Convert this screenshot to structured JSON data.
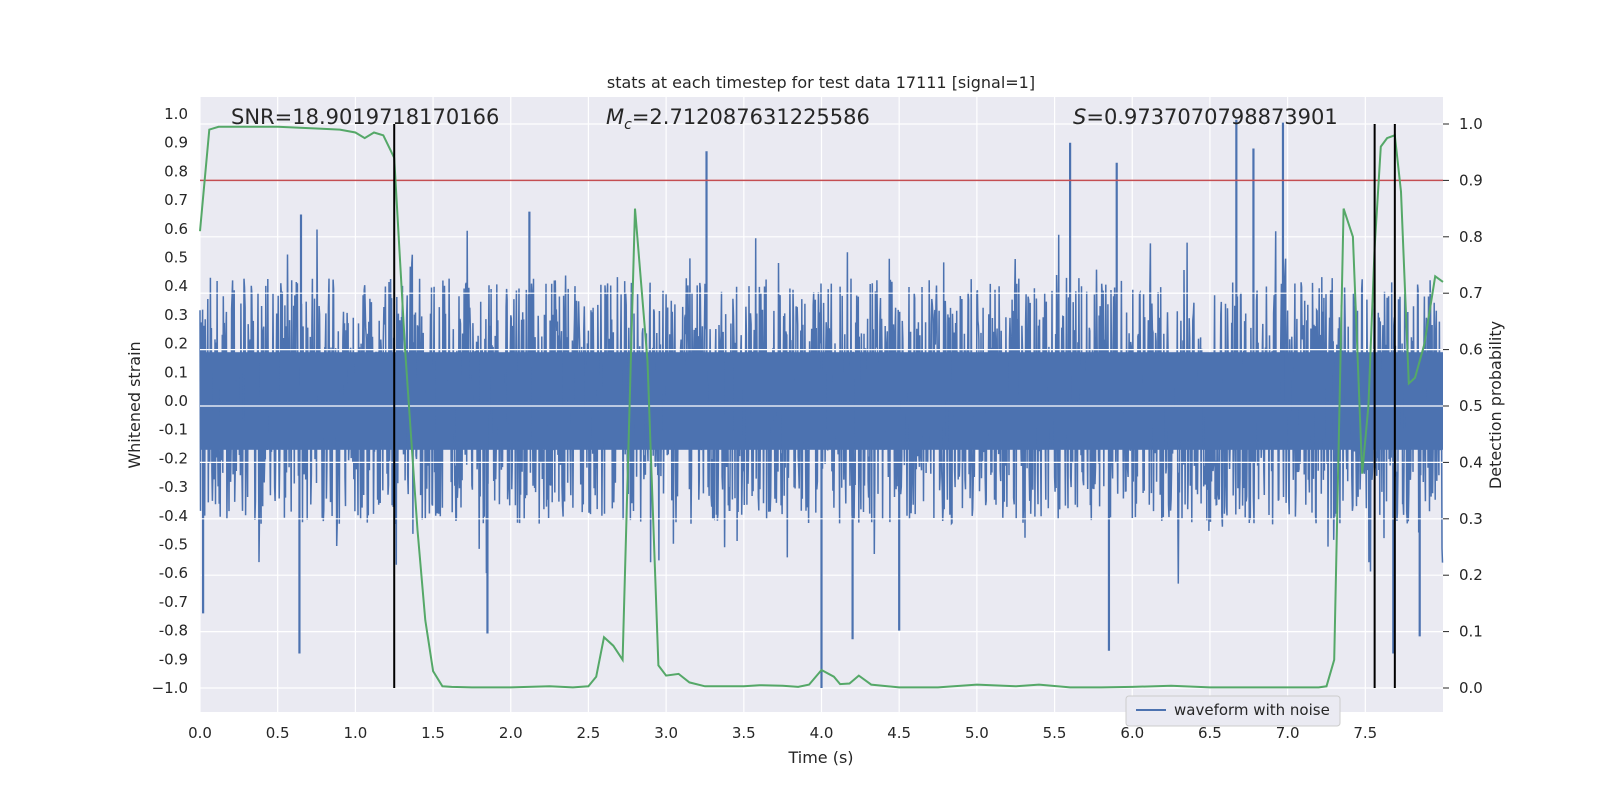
{
  "chart_data": {
    "type": "line",
    "title": "stats at each timestep for test data 17111 [signal=1]",
    "xlabel": "Time (s)",
    "ylabel_left": "Whitened strain",
    "ylabel_right": "Detection probability",
    "xlim": [
      0,
      8
    ],
    "ylim_left": [
      -1.1,
      1.06
    ],
    "ylim_right": [
      -0.05,
      1.02
    ],
    "x_ticks": [
      0,
      0.5,
      1,
      1.5,
      2,
      2.5,
      3,
      3.5,
      4,
      4.5,
      5,
      5.5,
      6,
      6.5,
      7,
      7.5
    ],
    "x_tick_labels": [
      "0.0",
      "0.5",
      "1.0",
      "1.5",
      "2.0",
      "2.5",
      "3.0",
      "3.5",
      "4.0",
      "4.5",
      "5.0",
      "5.5",
      "6.0",
      "6.5",
      "7.0",
      "7.5"
    ],
    "left_ticks": [
      1.0,
      0.9,
      0.8,
      0.7,
      0.6,
      0.5,
      0.4,
      0.3,
      0.2,
      0.1,
      0.0,
      -0.1,
      -0.2,
      -0.3,
      -0.4,
      -0.5,
      -0.6,
      -0.7,
      -0.8,
      -0.9,
      -1.0
    ],
    "left_tick_labels": [
      "1.0",
      "0.9",
      "0.8",
      "0.7",
      "0.6",
      "0.5",
      "0.4",
      "0.3",
      "0.2",
      "0.1",
      "0.0",
      "-0.1",
      "-0.2",
      "-0.3",
      "-0.4",
      "-0.5",
      "-0.6",
      "-0.7",
      "-0.8",
      "-0.9",
      "−1.0"
    ],
    "right_ticks": [
      1.0,
      0.9,
      0.8,
      0.7,
      0.6,
      0.5,
      0.4,
      0.3,
      0.2,
      0.1,
      0.0
    ],
    "right_tick_labels": [
      "1.0",
      "0.9",
      "0.8",
      "0.7",
      "0.6",
      "0.5",
      "0.4",
      "0.3",
      "0.2",
      "0.1",
      "0.0"
    ],
    "annotations": {
      "snr": "SNR=18.9019718170166",
      "mc_symbol": "M",
      "mc_subscript": "c",
      "mc_value": "=2.712087631225586",
      "s_symbol": "S",
      "s_value": "=0.9737070798873901"
    },
    "legend": {
      "label": "waveform with noise",
      "location": "lower-right"
    },
    "threshold": {
      "value": 0.9,
      "axis": "right",
      "color": "#c44e52"
    },
    "event_lines": [
      1.25,
      7.56,
      7.69
    ],
    "series": [
      {
        "name": "waveform with noise",
        "axis": "left",
        "color": "#4c72b0",
        "envelope_summary": {
          "typical_range": [
            -0.42,
            0.43
          ],
          "peaks": [
            {
              "t": 0.02,
              "v": -0.74
            },
            {
              "t": 0.65,
              "v": 0.65
            },
            {
              "t": 0.64,
              "v": -0.88
            },
            {
              "t": 1.85,
              "v": -0.81
            },
            {
              "t": 2.12,
              "v": 0.66
            },
            {
              "t": 3.26,
              "v": 0.87
            },
            {
              "t": 4.0,
              "v": -1.0
            },
            {
              "t": 4.2,
              "v": -0.83
            },
            {
              "t": 4.5,
              "v": -0.8
            },
            {
              "t": 5.6,
              "v": 0.9
            },
            {
              "t": 5.9,
              "v": 0.83
            },
            {
              "t": 5.85,
              "v": -0.87
            },
            {
              "t": 6.67,
              "v": 0.98
            },
            {
              "t": 6.78,
              "v": 0.88
            },
            {
              "t": 6.97,
              "v": 0.97
            },
            {
              "t": 7.68,
              "v": -0.88
            },
            {
              "t": 7.85,
              "v": -0.82
            }
          ]
        }
      },
      {
        "name": "detection probability",
        "axis": "right",
        "color": "#55a868",
        "x": [
          0.0,
          0.06,
          0.12,
          0.25,
          0.5,
          0.75,
          0.9,
          1.0,
          1.06,
          1.12,
          1.18,
          1.25,
          1.32,
          1.4,
          1.45,
          1.5,
          1.56,
          1.62,
          1.75,
          2.0,
          2.25,
          2.4,
          2.5,
          2.55,
          2.6,
          2.66,
          2.72,
          2.8,
          2.88,
          2.95,
          3.0,
          3.08,
          3.15,
          3.25,
          3.5,
          3.6,
          3.75,
          3.85,
          3.92,
          4.0,
          4.08,
          4.12,
          4.18,
          4.24,
          4.32,
          4.5,
          4.75,
          5.0,
          5.25,
          5.4,
          5.6,
          5.8,
          6.0,
          6.25,
          6.5,
          6.75,
          7.0,
          7.2,
          7.25,
          7.3,
          7.36,
          7.42,
          7.48,
          7.52,
          7.56,
          7.6,
          7.64,
          7.69,
          7.73,
          7.78,
          7.82,
          7.88,
          7.95,
          8.0
        ],
        "values": [
          0.81,
          0.99,
          0.995,
          0.995,
          0.995,
          0.992,
          0.99,
          0.985,
          0.975,
          0.985,
          0.98,
          0.94,
          0.6,
          0.28,
          0.12,
          0.03,
          0.003,
          0.002,
          0.001,
          0.001,
          0.003,
          0.001,
          0.003,
          0.02,
          0.09,
          0.075,
          0.05,
          0.85,
          0.58,
          0.04,
          0.022,
          0.025,
          0.01,
          0.003,
          0.003,
          0.005,
          0.004,
          0.002,
          0.006,
          0.032,
          0.02,
          0.007,
          0.008,
          0.022,
          0.006,
          0.001,
          0.001,
          0.006,
          0.003,
          0.006,
          0.001,
          0.001,
          0.002,
          0.004,
          0.001,
          0.001,
          0.001,
          0.001,
          0.003,
          0.05,
          0.85,
          0.8,
          0.38,
          0.5,
          0.78,
          0.96,
          0.975,
          0.98,
          0.88,
          0.54,
          0.55,
          0.61,
          0.73,
          0.72
        ]
      }
    ]
  }
}
